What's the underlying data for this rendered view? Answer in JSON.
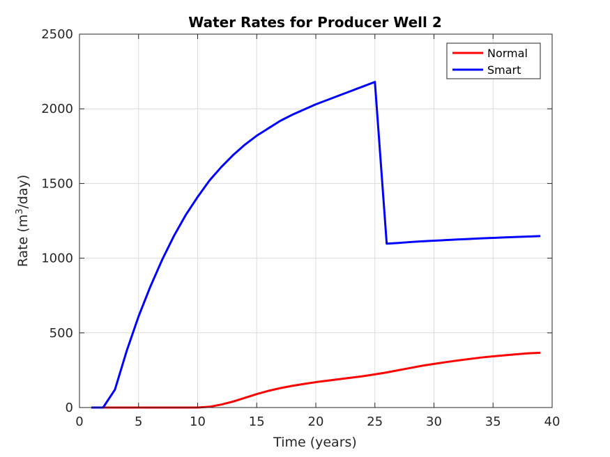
{
  "chart_data": {
    "type": "line",
    "title": "Water Rates for Producer Well 2",
    "xlabel": "Time (years)",
    "ylabel_main": "Rate (m",
    "ylabel_sup": "3",
    "ylabel_rest": "/day)",
    "xlim": [
      0,
      40
    ],
    "ylim": [
      0,
      2500
    ],
    "xticks": [
      0,
      5,
      10,
      15,
      20,
      25,
      30,
      35,
      40
    ],
    "yticks": [
      0,
      500,
      1000,
      1500,
      2000,
      2500
    ],
    "grid": true,
    "legend_position": "top-right",
    "series": [
      {
        "name": "Normal",
        "color": "#ff0000",
        "x": [
          1,
          2,
          3,
          4,
          5,
          6,
          7,
          8,
          9,
          10,
          11,
          12,
          13,
          14,
          15,
          16,
          17,
          18,
          19,
          20,
          21,
          22,
          23,
          24,
          25,
          26,
          27,
          28,
          29,
          30,
          31,
          32,
          33,
          34,
          35,
          36,
          37,
          38,
          39
        ],
        "y": [
          0,
          0,
          0,
          0,
          0,
          0,
          0,
          0,
          0,
          0,
          5,
          20,
          40,
          65,
          90,
          112,
          130,
          145,
          158,
          170,
          180,
          190,
          200,
          210,
          222,
          235,
          250,
          265,
          280,
          292,
          304,
          315,
          325,
          335,
          343,
          350,
          357,
          363,
          367
        ]
      },
      {
        "name": "Smart",
        "color": "#0000ff",
        "x": [
          1,
          2,
          3,
          4,
          5,
          6,
          7,
          8,
          9,
          10,
          11,
          12,
          13,
          14,
          15,
          16,
          17,
          18,
          19,
          20,
          21,
          22,
          23,
          24,
          25,
          26,
          27,
          28,
          29,
          30,
          31,
          32,
          33,
          34,
          35,
          36,
          37,
          38,
          39
        ],
        "y": [
          0,
          0,
          120,
          380,
          610,
          810,
          990,
          1150,
          1290,
          1410,
          1520,
          1610,
          1690,
          1760,
          1820,
          1870,
          1920,
          1960,
          1995,
          2030,
          2060,
          2090,
          2120,
          2150,
          2180,
          1097,
          1102,
          1108,
          1113,
          1117,
          1121,
          1125,
          1129,
          1133,
          1136,
          1139,
          1142,
          1145,
          1148
        ]
      }
    ]
  }
}
